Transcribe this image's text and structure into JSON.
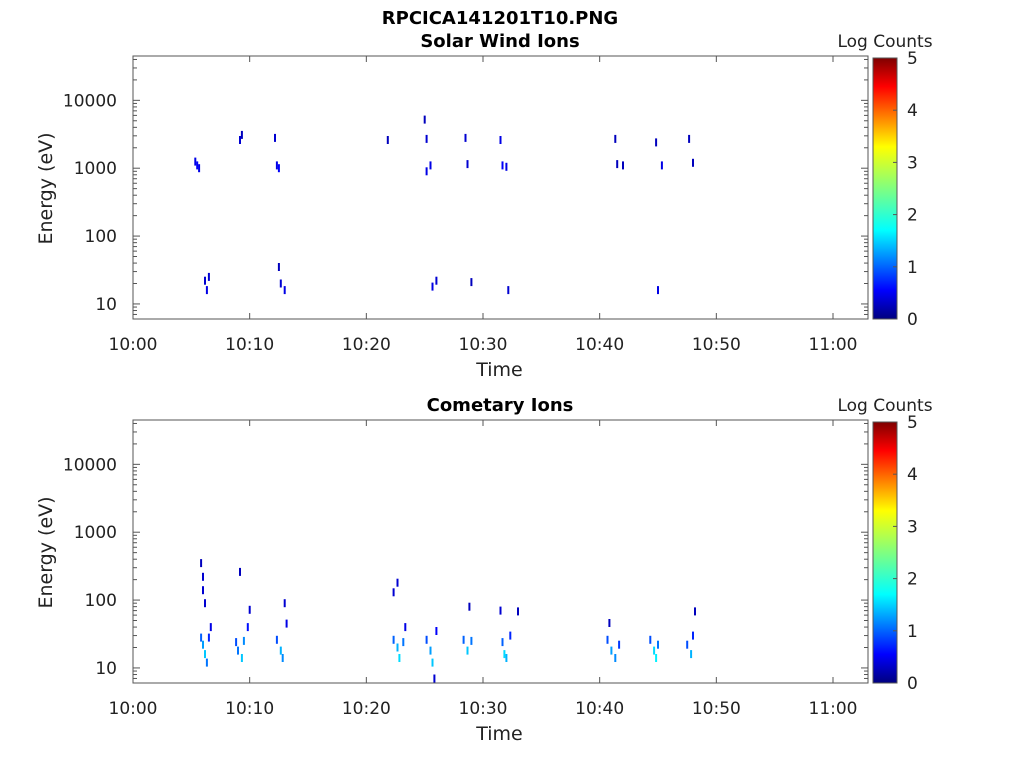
{
  "figure": {
    "title": "RPCICA141201T10.PNG"
  },
  "chart_data": [
    {
      "type": "heatmap",
      "title": "Solar Wind Ions",
      "xlabel": "Time",
      "ylabel": "Energy (eV)",
      "x_ticks": [
        "10:00",
        "10:10",
        "10:20",
        "10:30",
        "10:40",
        "10:50",
        "11:00"
      ],
      "x_range": [
        "10:00",
        "11:03"
      ],
      "y_scale": "log",
      "y_ticks": [
        10,
        100,
        1000,
        10000
      ],
      "y_range": [
        6,
        45000
      ],
      "colorbar": {
        "label": "Log Counts",
        "range": [
          0,
          5
        ],
        "ticks": [
          0,
          1,
          2,
          3,
          4,
          5
        ],
        "colormap": "jet"
      },
      "cells": [
        {
          "t": "10:05:20",
          "e": 1250,
          "logc": 0.5
        },
        {
          "t": "10:05:30",
          "e": 1100,
          "logc": 0.6
        },
        {
          "t": "10:05:40",
          "e": 1000,
          "logc": 0.5
        },
        {
          "t": "10:06:10",
          "e": 22,
          "logc": 0.4
        },
        {
          "t": "10:06:20",
          "e": 16,
          "logc": 0.5
        },
        {
          "t": "10:06:30",
          "e": 25,
          "logc": 0.4
        },
        {
          "t": "10:09:10",
          "e": 2600,
          "logc": 0.4
        },
        {
          "t": "10:09:20",
          "e": 3100,
          "logc": 0.3
        },
        {
          "t": "10:12:10",
          "e": 2800,
          "logc": 0.4
        },
        {
          "t": "10:12:20",
          "e": 1100,
          "logc": 0.5
        },
        {
          "t": "10:12:30",
          "e": 1000,
          "logc": 0.6
        },
        {
          "t": "10:12:30",
          "e": 35,
          "logc": 0.3
        },
        {
          "t": "10:12:40",
          "e": 20,
          "logc": 0.4
        },
        {
          "t": "10:13:00",
          "e": 16,
          "logc": 0.5
        },
        {
          "t": "10:21:50",
          "e": 2600,
          "logc": 0.3
        },
        {
          "t": "10:25:00",
          "e": 5200,
          "logc": 0.3
        },
        {
          "t": "10:25:10",
          "e": 2700,
          "logc": 0.4
        },
        {
          "t": "10:25:10",
          "e": 900,
          "logc": 0.5
        },
        {
          "t": "10:25:30",
          "e": 1100,
          "logc": 0.5
        },
        {
          "t": "10:25:40",
          "e": 18,
          "logc": 0.5
        },
        {
          "t": "10:26:00",
          "e": 22,
          "logc": 0.4
        },
        {
          "t": "10:28:30",
          "e": 2800,
          "logc": 0.4
        },
        {
          "t": "10:28:40",
          "e": 1150,
          "logc": 0.4
        },
        {
          "t": "10:29:00",
          "e": 21,
          "logc": 0.3
        },
        {
          "t": "10:31:30",
          "e": 2600,
          "logc": 0.5
        },
        {
          "t": "10:31:40",
          "e": 1100,
          "logc": 0.6
        },
        {
          "t": "10:32:00",
          "e": 1050,
          "logc": 0.5
        },
        {
          "t": "10:32:10",
          "e": 16,
          "logc": 0.4
        },
        {
          "t": "10:41:20",
          "e": 2700,
          "logc": 0.3
        },
        {
          "t": "10:41:30",
          "e": 1150,
          "logc": 0.3
        },
        {
          "t": "10:42:00",
          "e": 1100,
          "logc": 0.3
        },
        {
          "t": "10:44:50",
          "e": 2400,
          "logc": 0.3
        },
        {
          "t": "10:45:00",
          "e": 16,
          "logc": 0.5
        },
        {
          "t": "10:45:20",
          "e": 1100,
          "logc": 0.5
        },
        {
          "t": "10:47:40",
          "e": 2700,
          "logc": 0.3
        },
        {
          "t": "10:48:00",
          "e": 1200,
          "logc": 0.3
        }
      ]
    },
    {
      "type": "heatmap",
      "title": "Cometary Ions",
      "xlabel": "Time",
      "ylabel": "Energy (eV)",
      "x_ticks": [
        "10:00",
        "10:10",
        "10:20",
        "10:30",
        "10:40",
        "10:50",
        "11:00"
      ],
      "x_range": [
        "10:00",
        "11:03"
      ],
      "y_scale": "log",
      "y_ticks": [
        10,
        100,
        1000,
        10000
      ],
      "y_range": [
        6,
        45000
      ],
      "colorbar": {
        "label": "Log Counts",
        "range": [
          0,
          5
        ],
        "ticks": [
          0,
          1,
          2,
          3,
          4,
          5
        ],
        "colormap": "jet"
      },
      "cells": [
        {
          "t": "10:05:50",
          "e": 350,
          "logc": 0.3
        },
        {
          "t": "10:06:00",
          "e": 220,
          "logc": 0.4
        },
        {
          "t": "10:06:00",
          "e": 140,
          "logc": 0.4
        },
        {
          "t": "10:06:10",
          "e": 90,
          "logc": 0.4
        },
        {
          "t": "10:05:50",
          "e": 28,
          "logc": 1.1
        },
        {
          "t": "10:06:00",
          "e": 22,
          "logc": 1.4
        },
        {
          "t": "10:06:10",
          "e": 16,
          "logc": 1.6
        },
        {
          "t": "10:06:20",
          "e": 12,
          "logc": 1.2
        },
        {
          "t": "10:06:30",
          "e": 28,
          "logc": 0.8
        },
        {
          "t": "10:06:40",
          "e": 40,
          "logc": 0.5
        },
        {
          "t": "10:09:10",
          "e": 260,
          "logc": 0.3
        },
        {
          "t": "10:08:50",
          "e": 24,
          "logc": 1.0
        },
        {
          "t": "10:09:00",
          "e": 18,
          "logc": 1.2
        },
        {
          "t": "10:09:20",
          "e": 14,
          "logc": 1.6
        },
        {
          "t": "10:09:30",
          "e": 25,
          "logc": 1.3
        },
        {
          "t": "10:09:50",
          "e": 40,
          "logc": 0.7
        },
        {
          "t": "10:10:00",
          "e": 72,
          "logc": 0.4
        },
        {
          "t": "10:12:20",
          "e": 26,
          "logc": 1.0
        },
        {
          "t": "10:12:40",
          "e": 18,
          "logc": 1.5
        },
        {
          "t": "10:12:50",
          "e": 14,
          "logc": 1.3
        },
        {
          "t": "10:13:00",
          "e": 90,
          "logc": 0.4
        },
        {
          "t": "10:13:10",
          "e": 45,
          "logc": 0.5
        },
        {
          "t": "10:22:20",
          "e": 130,
          "logc": 0.4
        },
        {
          "t": "10:22:40",
          "e": 180,
          "logc": 0.4
        },
        {
          "t": "10:22:20",
          "e": 26,
          "logc": 1.1
        },
        {
          "t": "10:22:40",
          "e": 20,
          "logc": 1.5
        },
        {
          "t": "10:22:50",
          "e": 14,
          "logc": 1.7
        },
        {
          "t": "10:23:10",
          "e": 24,
          "logc": 1.2
        },
        {
          "t": "10:23:20",
          "e": 40,
          "logc": 0.5
        },
        {
          "t": "10:25:10",
          "e": 26,
          "logc": 1.0
        },
        {
          "t": "10:25:30",
          "e": 18,
          "logc": 1.4
        },
        {
          "t": "10:25:40",
          "e": 12,
          "logc": 1.6
        },
        {
          "t": "10:25:50",
          "e": 7,
          "logc": 0.4
        },
        {
          "t": "10:26:00",
          "e": 35,
          "logc": 0.6
        },
        {
          "t": "10:28:20",
          "e": 26,
          "logc": 1.1
        },
        {
          "t": "10:28:40",
          "e": 18,
          "logc": 1.6
        },
        {
          "t": "10:28:50",
          "e": 80,
          "logc": 0.3
        },
        {
          "t": "10:29:00",
          "e": 25,
          "logc": 1.2
        },
        {
          "t": "10:31:30",
          "e": 70,
          "logc": 0.4
        },
        {
          "t": "10:31:40",
          "e": 24,
          "logc": 1.1
        },
        {
          "t": "10:31:50",
          "e": 16,
          "logc": 1.7
        },
        {
          "t": "10:32:00",
          "e": 14,
          "logc": 1.5
        },
        {
          "t": "10:32:20",
          "e": 30,
          "logc": 0.8
        },
        {
          "t": "10:33:00",
          "e": 68,
          "logc": 0.3
        },
        {
          "t": "10:40:50",
          "e": 46,
          "logc": 0.3
        },
        {
          "t": "10:40:40",
          "e": 26,
          "logc": 1.0
        },
        {
          "t": "10:41:00",
          "e": 18,
          "logc": 1.4
        },
        {
          "t": "10:41:20",
          "e": 14,
          "logc": 1.3
        },
        {
          "t": "10:41:40",
          "e": 22,
          "logc": 0.9
        },
        {
          "t": "10:44:20",
          "e": 26,
          "logc": 1.0
        },
        {
          "t": "10:44:40",
          "e": 18,
          "logc": 1.7
        },
        {
          "t": "10:44:50",
          "e": 14,
          "logc": 1.8
        },
        {
          "t": "10:45:00",
          "e": 22,
          "logc": 1.2
        },
        {
          "t": "10:47:30",
          "e": 22,
          "logc": 1.0
        },
        {
          "t": "10:47:50",
          "e": 16,
          "logc": 1.5
        },
        {
          "t": "10:48:00",
          "e": 30,
          "logc": 0.8
        },
        {
          "t": "10:48:10",
          "e": 68,
          "logc": 0.3
        }
      ]
    }
  ]
}
